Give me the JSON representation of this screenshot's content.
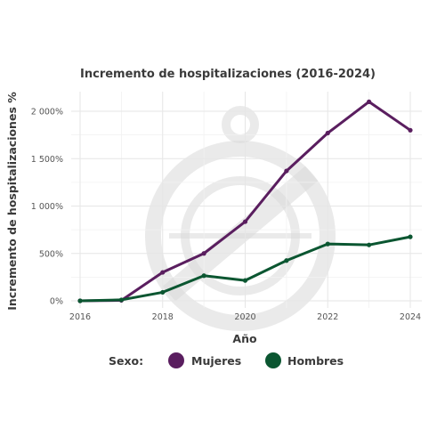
{
  "chart_data": {
    "type": "line",
    "title": "Incremento de hospitalizaciones (2016-2024)",
    "xlabel": "Año",
    "ylabel": "Incremento de hospitalizaciones %",
    "x": [
      2016,
      2017,
      2018,
      2019,
      2020,
      2021,
      2022,
      2023,
      2024
    ],
    "xticks": [
      2016,
      2018,
      2020,
      2022,
      2024
    ],
    "xtick_labels": [
      "2016",
      "2018",
      "2020",
      "2022",
      "2024"
    ],
    "yticks": [
      0,
      500,
      1000,
      1500,
      2000
    ],
    "ytick_labels": [
      "0%",
      "500%",
      "1 000%",
      "1 500%",
      "2 000%"
    ],
    "xlim": [
      2016,
      2024
    ],
    "ylim": [
      0,
      2100
    ],
    "grid": true,
    "legend": {
      "title": "Sexo:",
      "position": "bottom"
    },
    "series": [
      {
        "name": "Mujeres",
        "color": "#5a1e5f",
        "values": [
          0,
          5,
          300,
          500,
          835,
          1370,
          1770,
          2100,
          1800
        ]
      },
      {
        "name": "Hombres",
        "color": "#0b5631",
        "values": [
          0,
          10,
          90,
          265,
          215,
          425,
          600,
          590,
          675
        ]
      }
    ]
  }
}
